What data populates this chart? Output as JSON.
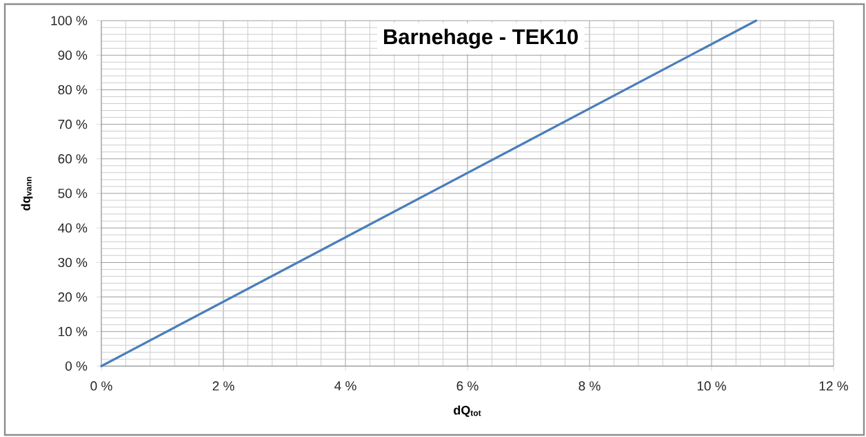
{
  "chart_data": {
    "type": "line",
    "title": "Barnehage - TEK10",
    "xlabel": "dQ$_{tot}$",
    "ylabel": "dq$_{vann}$",
    "x": [
      0,
      10.73
    ],
    "series": [
      {
        "color": "#4a7ebb",
        "values": [
          0,
          100
        ]
      }
    ],
    "xlim": [
      0,
      12
    ],
    "ylim": [
      0,
      100
    ],
    "xticks": [
      {
        "value": 0,
        "label": "0 %"
      },
      {
        "value": 2,
        "label": "2 %"
      },
      {
        "value": 4,
        "label": "4 %"
      },
      {
        "value": 6,
        "label": "6 %"
      },
      {
        "value": 8,
        "label": "8 %"
      },
      {
        "value": 10,
        "label": "10 %"
      },
      {
        "value": 12,
        "label": "12 %"
      }
    ],
    "yticks": [
      {
        "value": 0,
        "label": "0 %"
      },
      {
        "value": 10,
        "label": "10 %"
      },
      {
        "value": 20,
        "label": "20 %"
      },
      {
        "value": 30,
        "label": "30 %"
      },
      {
        "value": 40,
        "label": "40 %"
      },
      {
        "value": 50,
        "label": "50 %"
      },
      {
        "value": 60,
        "label": "60 %"
      },
      {
        "value": 70,
        "label": "70 %"
      },
      {
        "value": 80,
        "label": "80 %"
      },
      {
        "value": 90,
        "label": "90 %"
      },
      {
        "value": 100,
        "label": "100 %"
      }
    ],
    "grid": true
  }
}
